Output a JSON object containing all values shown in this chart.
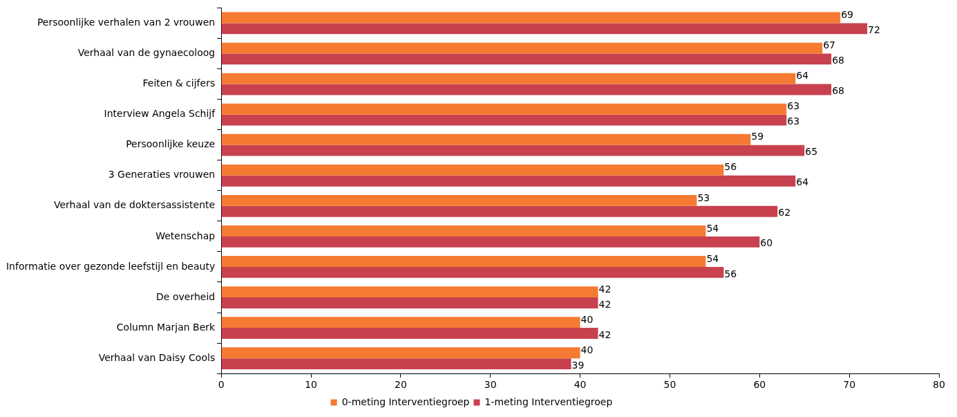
{
  "chart_data": {
    "type": "bar",
    "orientation": "horizontal",
    "categories": [
      "Persoonlijke verhalen van 2 vrouwen",
      "Verhaal van de gynaecoloog",
      "Feiten & cijfers",
      "Interview Angela Schijf",
      "Persoonlijke keuze",
      "3 Generaties vrouwen",
      "Verhaal van de doktersassistente",
      "Wetenschap",
      "Informatie over gezonde leefstijl en beauty",
      "De overheid",
      "Column Marjan Berk",
      "Verhaal van Daisy Cools"
    ],
    "series": [
      {
        "name": "0-meting Interventiegroep",
        "color": "#f57a32",
        "values": [
          69,
          67,
          64,
          63,
          59,
          56,
          53,
          54,
          54,
          42,
          40,
          40
        ]
      },
      {
        "name": "1-meting Interventiegroep",
        "color": "#c8414e",
        "values": [
          72,
          68,
          68,
          63,
          65,
          64,
          62,
          60,
          56,
          42,
          42,
          39
        ]
      }
    ],
    "xlim": [
      0,
      80
    ],
    "xticks": [
      0,
      10,
      20,
      30,
      40,
      50,
      60,
      70,
      80
    ],
    "data_labels": true,
    "grid": false,
    "legend": "bottom"
  }
}
